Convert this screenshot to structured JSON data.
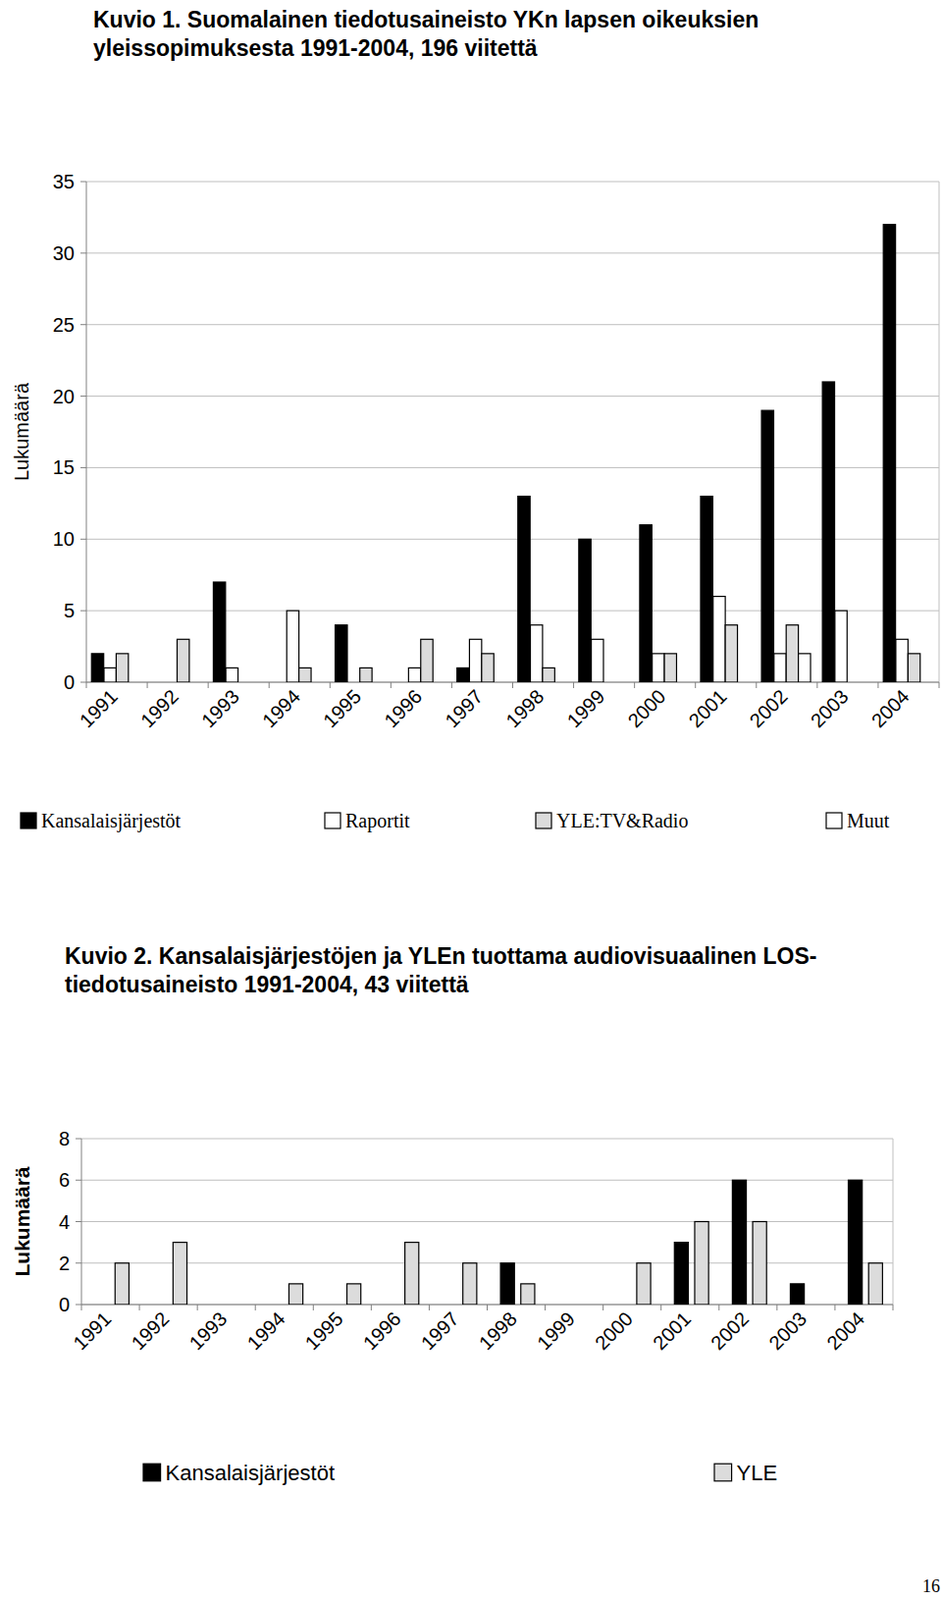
{
  "chart_data": [
    {
      "type": "bar",
      "title": "Kuvio 1. Suomalainen tiedotusaineisto YKn lapsen oikeuksien yleissopimuksesta 1991-2004, 196 viitettä",
      "y_label": "Lukumäärä",
      "categories": [
        "1991",
        "1992",
        "1993",
        "1994",
        "1995",
        "1996",
        "1997",
        "1998",
        "1999",
        "2000",
        "2001",
        "2002",
        "2003",
        "2004"
      ],
      "series": [
        {
          "name": "Kansalaisjärjestöt",
          "color": "#000000",
          "values": [
            2,
            0,
            7,
            0,
            4,
            0,
            1,
            13,
            10,
            11,
            13,
            19,
            21,
            32
          ]
        },
        {
          "name": "Raportit",
          "color": "#ffffff",
          "values": [
            1,
            0,
            1,
            5,
            0,
            1,
            3,
            4,
            3,
            2,
            6,
            2,
            5,
            3
          ]
        },
        {
          "name": "YLE:TV&Radio",
          "color": "#dcdcdc",
          "values": [
            2,
            3,
            0,
            1,
            1,
            3,
            2,
            1,
            0,
            2,
            4,
            4,
            0,
            2
          ]
        },
        {
          "name": "Muut",
          "color": "#ffffff",
          "values": [
            0,
            0,
            0,
            0,
            0,
            0,
            0,
            0,
            0,
            0,
            0,
            2,
            0,
            0
          ]
        }
      ],
      "ylim": [
        0,
        35
      ],
      "yticks": [
        0,
        5,
        10,
        15,
        20,
        25,
        30,
        35
      ],
      "grid": true,
      "legend": "bottom"
    },
    {
      "type": "bar",
      "title": "Kuvio 2. Kansalaisjärjestöjen ja YLEn tuottama audiovisuaalinen LOS-tiedotusaineisto 1991-2004, 43 viitettä",
      "y_label": "Lukumäärä",
      "categories": [
        "1991",
        "1992",
        "1993",
        "1994",
        "1995",
        "1996",
        "1997",
        "1998",
        "1999",
        "2000",
        "2001",
        "2002",
        "2003",
        "2004"
      ],
      "series": [
        {
          "name": "Kansalaisjärjestöt",
          "color": "#000000",
          "values": [
            0,
            0,
            0,
            0,
            0,
            0,
            0,
            2,
            0,
            0,
            3,
            6,
            1,
            6
          ]
        },
        {
          "name": "YLE",
          "color": "#dcdcdc",
          "values": [
            2,
            3,
            0,
            1,
            1,
            3,
            2,
            1,
            0,
            2,
            4,
            4,
            0,
            2
          ]
        }
      ],
      "ylim": [
        0,
        8
      ],
      "yticks": [
        0,
        2,
        4,
        6,
        8
      ],
      "grid": true,
      "legend": "bottom"
    }
  ],
  "page_number": "16"
}
